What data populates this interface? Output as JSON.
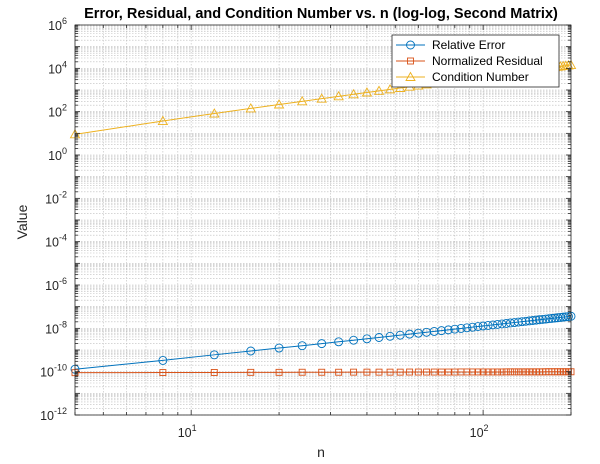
{
  "chart_data": {
    "type": "line",
    "title": "Error, Residual, and Condition Number vs. n (log-log, Second Matrix)",
    "xlabel": "n",
    "ylabel": "Value",
    "xscale": "log",
    "yscale": "log",
    "xlim": [
      4,
      200
    ],
    "ylim": [
      1e-12,
      1000000.0
    ],
    "grid": true,
    "minor_grid": true,
    "legend_position": "top-right",
    "x_ticks": [
      {
        "base": "10",
        "exp": "1"
      },
      {
        "base": "10",
        "exp": "2"
      }
    ],
    "y_ticks": [
      {
        "base": "10",
        "exp": "6"
      },
      {
        "base": "10",
        "exp": "4"
      },
      {
        "base": "10",
        "exp": "2"
      },
      {
        "base": "10",
        "exp": "0"
      },
      {
        "base": "10",
        "exp": "-2"
      },
      {
        "base": "10",
        "exp": "-4"
      },
      {
        "base": "10",
        "exp": "-6"
      },
      {
        "base": "10",
        "exp": "-8"
      },
      {
        "base": "10",
        "exp": "-10"
      },
      {
        "base": "10",
        "exp": "-12"
      }
    ],
    "x": [
      4,
      8,
      12,
      16,
      20,
      24,
      28,
      32,
      36,
      40,
      44,
      48,
      52,
      56,
      60,
      64,
      68,
      72,
      76,
      80,
      84,
      88,
      92,
      96,
      100,
      104,
      108,
      112,
      116,
      120,
      124,
      128,
      132,
      136,
      140,
      144,
      148,
      152,
      156,
      160,
      164,
      168,
      172,
      176,
      180,
      184,
      188,
      192,
      196,
      200
    ],
    "series": [
      {
        "name": "Relative Error",
        "color": "#0072BD",
        "marker": "circle",
        "values": [
          1.3e-10,
          3.3e-10,
          6e-10,
          9e-10,
          1.23e-09,
          1.58e-09,
          1.97e-09,
          2.39e-09,
          2.83e-09,
          3.29e-09,
          3.78e-09,
          4.3e-09,
          4.84e-09,
          5.4e-09,
          5.98e-09,
          6.58e-09,
          7.2e-09,
          7.84e-09,
          8.5e-09,
          9.18e-09,
          9.88e-09,
          1.06e-08,
          1.13e-08,
          1.21e-08,
          1.28e-08,
          1.36e-08,
          1.44e-08,
          1.52e-08,
          1.6e-08,
          1.68e-08,
          1.77e-08,
          1.85e-08,
          1.94e-08,
          2.03e-08,
          2.12e-08,
          2.21e-08,
          2.3e-08,
          2.39e-08,
          2.49e-08,
          2.58e-08,
          2.68e-08,
          2.78e-08,
          2.88e-08,
          2.98e-08,
          3.08e-08,
          3.19e-08,
          3.29e-08,
          3.4e-08,
          3.5e-08,
          3.61e-08
        ]
      },
      {
        "name": "Normalized Residual",
        "color": "#D95319",
        "marker": "square",
        "values": [
          9e-11,
          9.1e-11,
          9.2e-11,
          9.3e-11,
          9.3e-11,
          9.4e-11,
          9.4e-11,
          9.4e-11,
          9.5e-11,
          9.5e-11,
          9.5e-11,
          9.5e-11,
          9.5e-11,
          9.6e-11,
          9.6e-11,
          9.6e-11,
          9.6e-11,
          9.6e-11,
          9.6e-11,
          9.6e-11,
          9.7e-11,
          9.7e-11,
          9.7e-11,
          9.7e-11,
          9.7e-11,
          9.7e-11,
          9.7e-11,
          9.7e-11,
          9.7e-11,
          9.8e-11,
          9.8e-11,
          9.8e-11,
          9.8e-11,
          9.8e-11,
          9.8e-11,
          9.8e-11,
          9.8e-11,
          9.8e-11,
          9.8e-11,
          9.8e-11,
          9.9e-11,
          9.9e-11,
          9.9e-11,
          9.9e-11,
          9.9e-11,
          9.9e-11,
          9.9e-11,
          9.9e-11,
          9.9e-11,
          9.9e-11
        ]
      },
      {
        "name": "Condition Number",
        "color": "#EDB120",
        "marker": "triangle",
        "values": [
          9.0,
          37.0,
          82.0,
          141.0,
          214.0,
          300.0,
          399.0,
          510.0,
          633.0,
          767.0,
          913.0,
          1070.0,
          1238.0,
          1417.0,
          1606.0,
          1805.0,
          2015.0,
          2235.0,
          2465.0,
          2705.0,
          2955.0,
          3214.0,
          3483.0,
          3762.0,
          4050.0,
          4348.0,
          4655.0,
          4972.0,
          5298.0,
          5633.0,
          5977.0,
          6330.0,
          6692.0,
          7063.0,
          7443.0,
          7832.0,
          8230.0,
          8637.0,
          9052.0,
          9477.0,
          9910.0,
          10352.0,
          10802.0,
          11261.0,
          11729.0,
          12205.0,
          12690.0,
          13184.0,
          13686.0,
          14196.0
        ]
      }
    ]
  }
}
